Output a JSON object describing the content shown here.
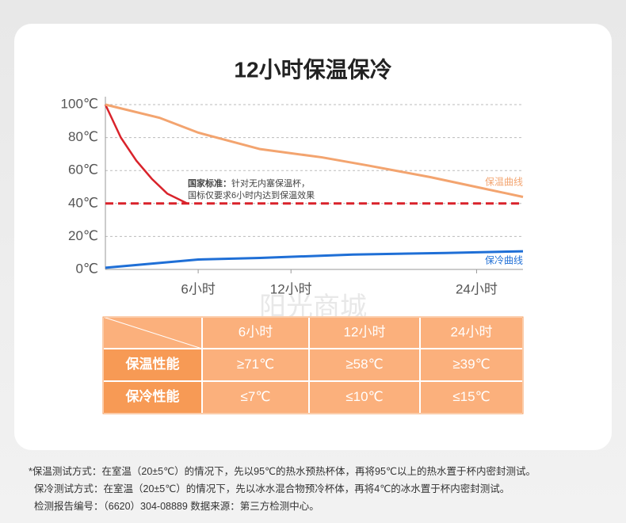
{
  "chart_data": {
    "type": "line",
    "title": "12小时保温保冷",
    "xlim": [
      0,
      27
    ],
    "xticks": [
      {
        "value": 6,
        "label": "6小时"
      },
      {
        "value": 12,
        "label": "12小时"
      },
      {
        "value": 24,
        "label": "24小时"
      }
    ],
    "ylim": [
      0,
      100
    ],
    "yticks": [
      {
        "value": 0,
        "label": "0℃"
      },
      {
        "value": 20,
        "label": "20℃"
      },
      {
        "value": 40,
        "label": "40℃"
      },
      {
        "value": 60,
        "label": "60℃"
      },
      {
        "value": 80,
        "label": "80℃"
      },
      {
        "value": 100,
        "label": "100℃"
      }
    ],
    "grid": true,
    "series": [
      {
        "name": "保温曲线",
        "color": "#f3a46f",
        "x": [
          0,
          3.5,
          6,
          10,
          14,
          17,
          21,
          24,
          27
        ],
        "values": [
          100,
          92,
          83,
          73,
          68,
          63,
          56,
          50,
          44
        ]
      },
      {
        "name": "保冷曲线",
        "color": "#1f6fd6",
        "x": [
          0,
          6,
          10,
          16,
          22,
          27
        ],
        "values": [
          1,
          6,
          7,
          9,
          10,
          11
        ]
      }
    ],
    "standard_curve": {
      "color": "#d9232b",
      "x": [
        0,
        1,
        2,
        3,
        4,
        5.3
      ],
      "values": [
        100,
        80,
        66,
        55,
        46,
        40
      ]
    },
    "threshold": 40,
    "annotation": {
      "label": "国家标准：",
      "lines": [
        "针对无内塞保温杯，",
        "国标仅要求6小时内达到保温效果"
      ]
    }
  },
  "watermark": "阳光商城",
  "table": {
    "header": [
      "6小时",
      "12小时",
      "24小时"
    ],
    "rows": [
      [
        "保温性能",
        "≥71℃",
        "≥58℃",
        "≥39℃"
      ],
      [
        "保冷性能",
        "≤7℃",
        "≤10℃",
        "≤15℃"
      ]
    ]
  },
  "footnotes": [
    "*保温测试方式：在室温（20±5℃）的情况下，先以95℃的热水预热杯体，再将95℃以上的热水置于杯内密封测试。",
    "保冷测试方式：在室温（20±5℃）的情况下，先以冰水混合物预冷杯体，再将4℃的冰水置于杯内密封测试。",
    "检测报告编号：（6620）304-08889 数据来源：第三方检测中心。"
  ]
}
